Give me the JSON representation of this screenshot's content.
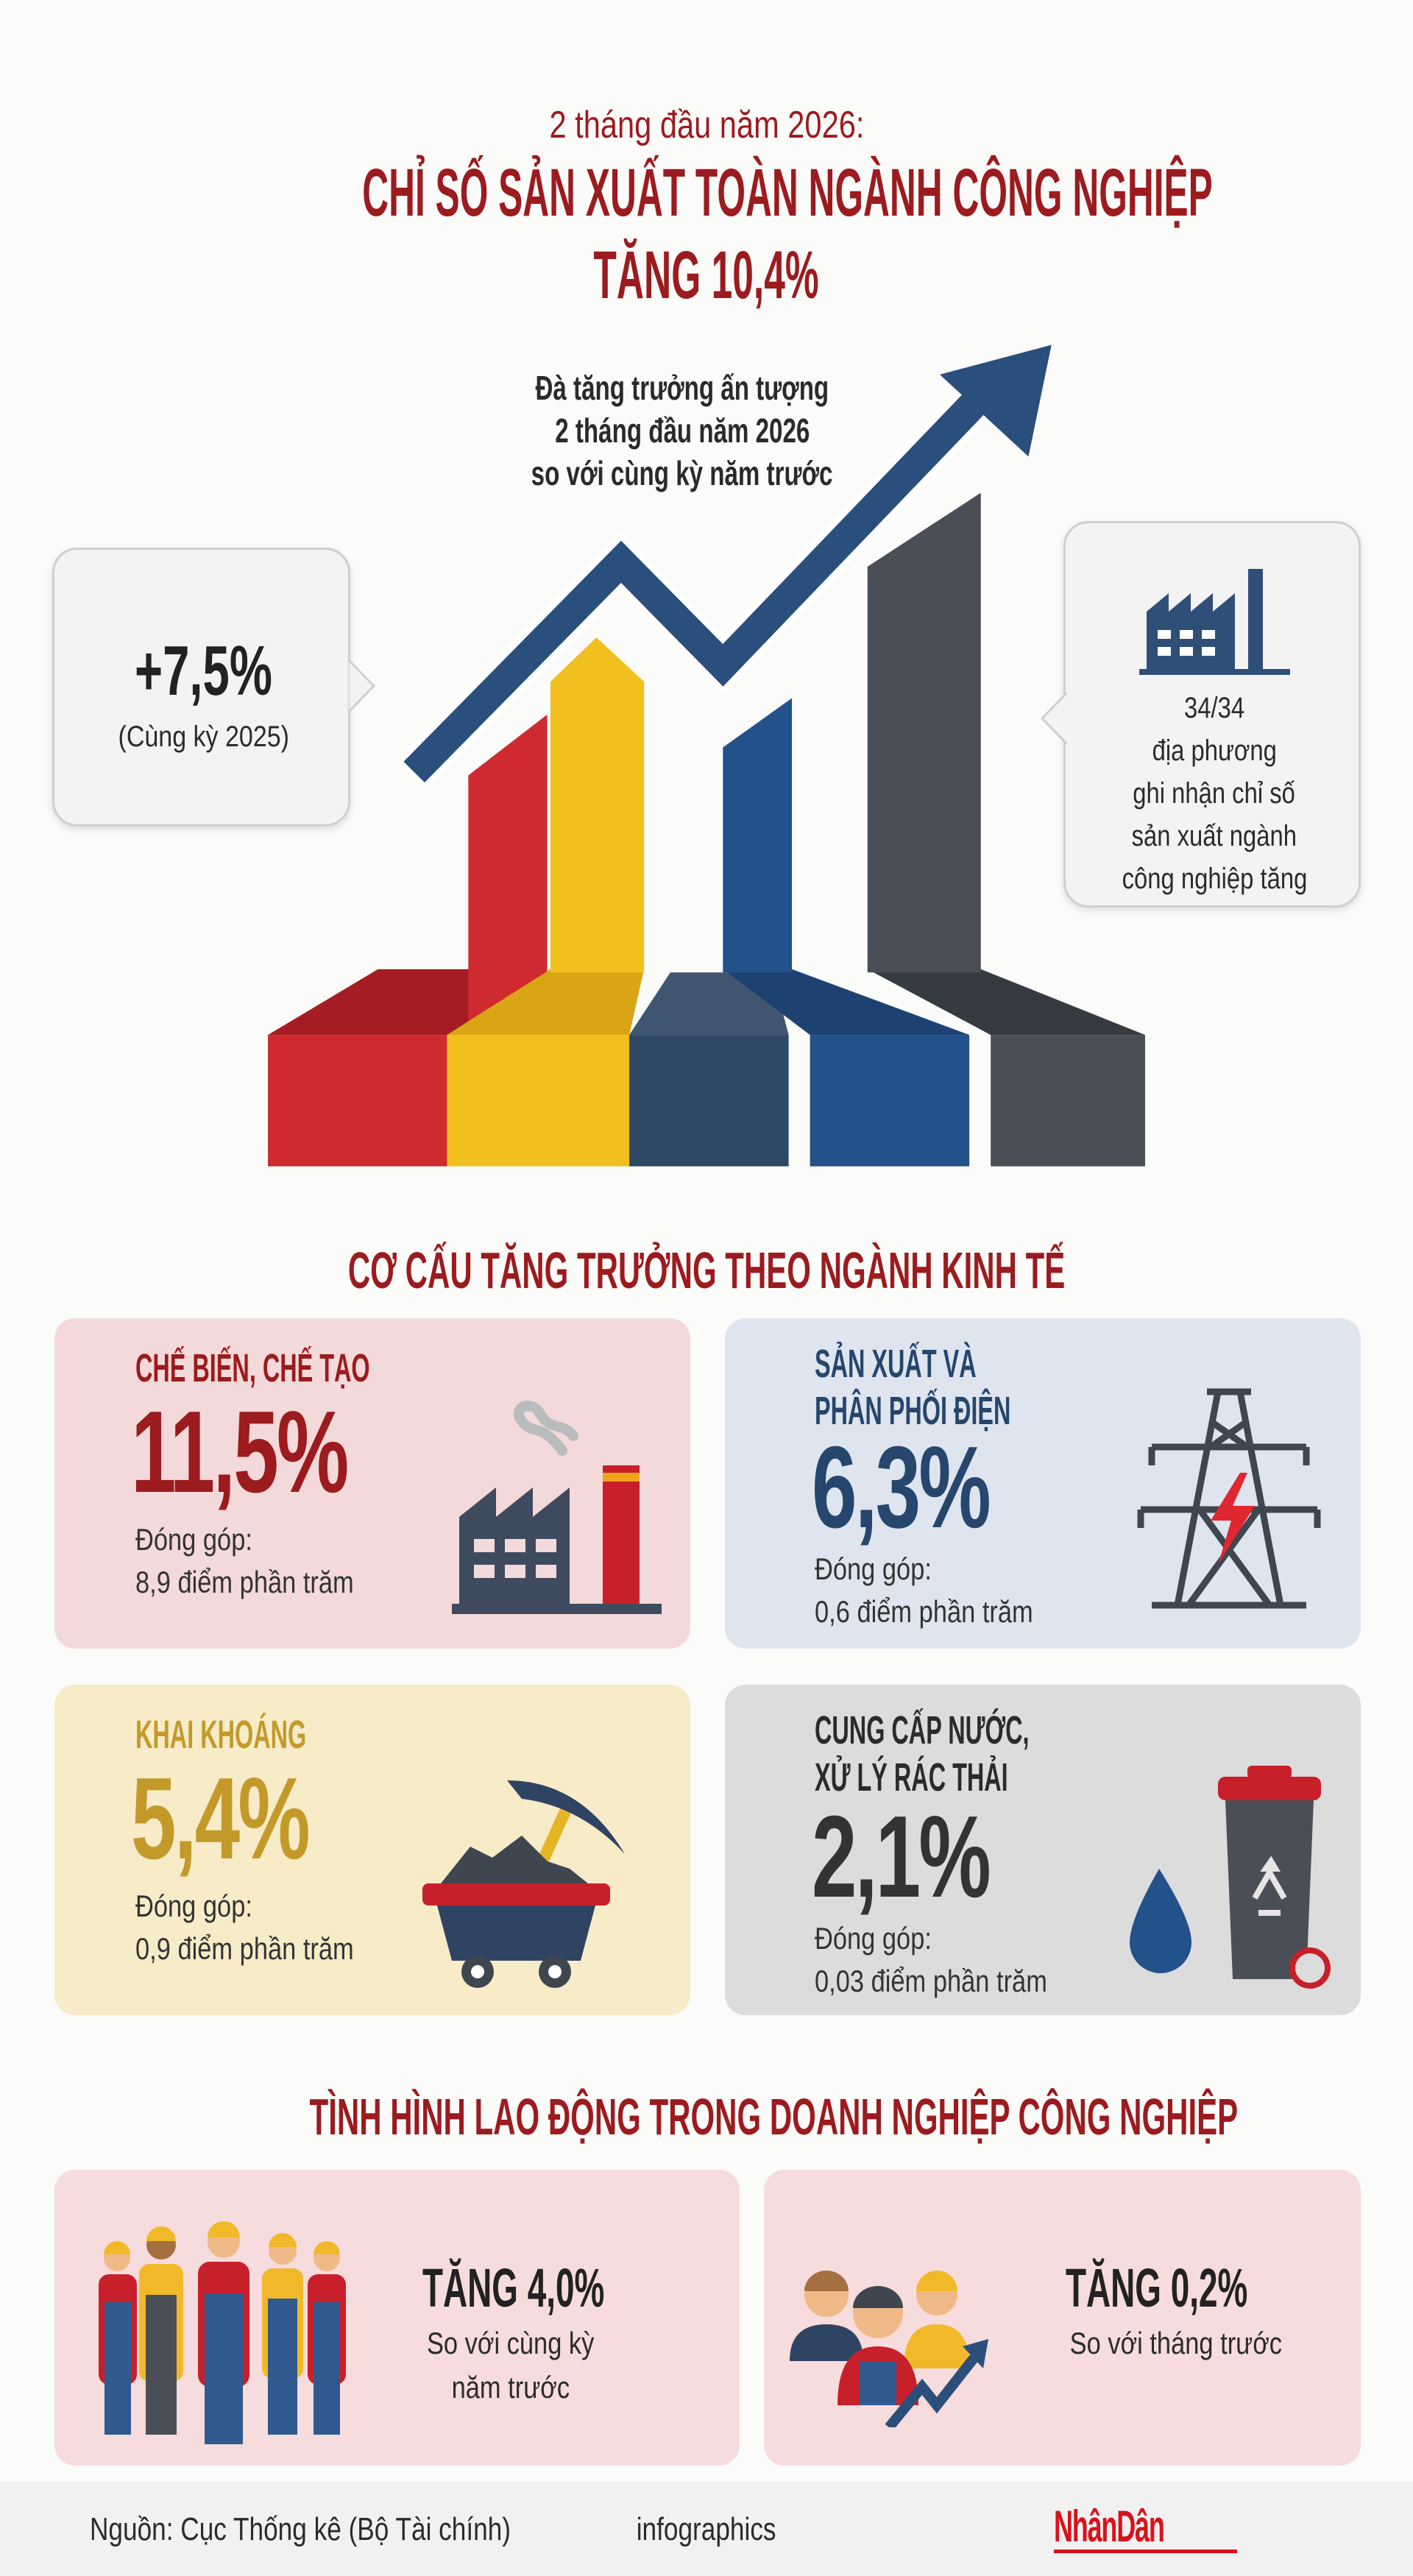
{
  "header": {
    "kicker": "2 tháng đầu năm 2026:",
    "title_line1": "CHỈ SỐ SẢN XUẤT TOÀN NGÀNH CÔNG NGHIỆP",
    "title_line2": "TĂNG 10,4%"
  },
  "hero": {
    "caption": [
      "Đà tăng trưởng ấn tượng",
      "2 tháng đầu năm 2026",
      "so với cùng kỳ năm trước"
    ],
    "left_bubble": {
      "value": "+7,5%",
      "note": "(Cùng kỳ 2025)"
    },
    "right_bubble": {
      "icon": "factory-icon",
      "value": "34/34",
      "lines": [
        "địa phương",
        "ghi nhận chỉ số",
        "sản xuất ngành",
        "công nghiệp tăng"
      ]
    },
    "colors": {
      "red": "#cf2a2f",
      "yellow": "#f2c01e",
      "navy": "#2f4866",
      "blue": "#23518a",
      "gray": "#4a4f57",
      "arrow": "#2b4f7d"
    }
  },
  "sectors": {
    "heading": "CƠ CẤU TĂNG TRƯỞNG THEO NGÀNH KINH TẾ",
    "items": [
      {
        "label": [
          "CHẾ BIẾN, CHẾ TẠO"
        ],
        "value": "11,5%",
        "contrib_label": "Đóng góp:",
        "contrib": "8,9 điểm phần trăm",
        "icon": "factory-icon",
        "color": "#9b1b1e",
        "bg": "#f4d9da"
      },
      {
        "label": [
          "SẢN XUẤT VÀ",
          "PHÂN PHỐI ĐIỆN"
        ],
        "value": "6,3%",
        "contrib_label": "Đóng góp:",
        "contrib": "0,6 điểm phần trăm",
        "icon": "power-tower-icon",
        "color": "#26466e",
        "bg": "#dfe5ee"
      },
      {
        "label": [
          "KHAI KHOÁNG"
        ],
        "value": "5,4%",
        "contrib_label": "Đóng góp:",
        "contrib": "0,9 điểm phần trăm",
        "icon": "mine-cart-icon",
        "color": "#c39a2a",
        "bg": "#f8ecc8"
      },
      {
        "label": [
          "CUNG CẤP NƯỚC,",
          "XỬ LÝ RÁC THẢI"
        ],
        "value": "2,1%",
        "contrib_label": "Đóng góp:",
        "contrib": "0,03 điểm phần trăm",
        "icon": "water-bin-icon",
        "color": "#333333",
        "bg": "#dcdcdc"
      }
    ]
  },
  "labor": {
    "heading": "TÌNH HÌNH LAO ĐỘNG TRONG DOANH NGHIỆP CÔNG NGHIỆP",
    "items": [
      {
        "value": "TĂNG 4,0%",
        "lines": [
          "So với cùng kỳ",
          "năm trước"
        ],
        "icon": "workers-icon"
      },
      {
        "value": "TĂNG 0,2%",
        "lines": [
          "So với tháng trước"
        ],
        "icon": "workers-growth-icon"
      }
    ]
  },
  "footer": {
    "source": "Nguồn: Cục Thống kê (Bộ Tài chính)",
    "tag": "infographics",
    "logo": "NhânDân"
  }
}
